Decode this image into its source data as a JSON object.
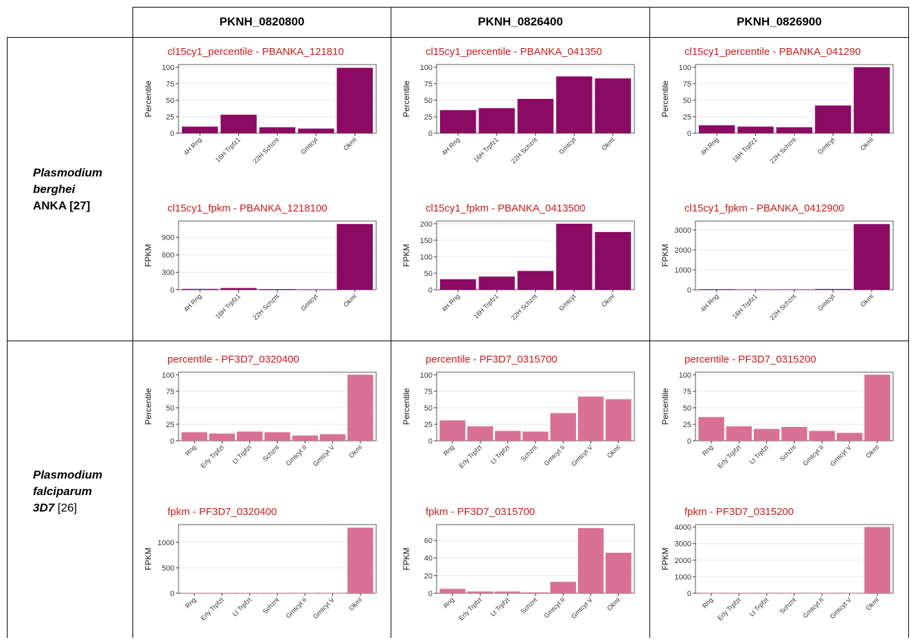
{
  "table": {
    "columns": [
      "PKNH_0820800",
      "PKNH_0826400",
      "PKNH_0826900"
    ],
    "rows": [
      {
        "label_italic": [
          "Plasmodium",
          "berghei"
        ],
        "label_name": "ANKA [27]"
      },
      {
        "label_italic": [
          "Plasmodium",
          "falciparum",
          "3D7"
        ],
        "label_name": "[26]"
      }
    ]
  },
  "colors": {
    "berghei": "#8b0a63",
    "falciparum": "#d97095",
    "title": "#cc1a1a"
  },
  "chart_data": [
    {
      "type": "bar",
      "title": "cl15cy1_percentile - PBANKA_121810",
      "ylabel": "Percentile",
      "categories": [
        "4H Rng",
        "16H Trpfz1",
        "22H Schznt",
        "Gmtcyt",
        "Okml"
      ],
      "values": [
        10,
        28,
        9,
        7,
        99
      ],
      "ylim": [
        0,
        104
      ],
      "yticks": [
        0,
        25,
        50,
        75,
        100
      ],
      "color": "berghei"
    },
    {
      "type": "bar",
      "title": "cl15cy1_percentile - PBANKA_041350",
      "ylabel": "Percentile",
      "categories": [
        "4H Rng",
        "16H Trpfz1",
        "22H Schznt",
        "Gmtcyt",
        "Okml"
      ],
      "values": [
        35,
        38,
        52,
        86,
        83
      ],
      "ylim": [
        0,
        104
      ],
      "yticks": [
        0,
        25,
        50,
        75,
        100
      ],
      "color": "berghei"
    },
    {
      "type": "bar",
      "title": "cl15cy1_percentile - PBANKA_041290",
      "ylabel": "Percentile",
      "categories": [
        "4H Rng",
        "16H Trpfz1",
        "22H Schznt",
        "Gmtcyt",
        "Okml"
      ],
      "values": [
        12,
        10,
        9,
        42,
        100
      ],
      "ylim": [
        0,
        104
      ],
      "yticks": [
        0,
        25,
        50,
        75,
        100
      ],
      "color": "berghei"
    },
    {
      "type": "bar",
      "title": "cl15cy1_fpkm - PBANKA_1218100",
      "ylabel": "FPKM",
      "categories": [
        "4H Rng",
        "16H Trpfz1",
        "22H Schznt",
        "Gmtcyt",
        "Okml"
      ],
      "values": [
        15,
        30,
        12,
        8,
        1130
      ],
      "ylim": [
        0,
        1180
      ],
      "yticks": [
        0,
        300,
        600,
        900
      ],
      "color": "berghei"
    },
    {
      "type": "bar",
      "title": "cl15cy1_fpkm - PBANKA_0413500",
      "ylabel": "FPKM",
      "categories": [
        "4H Rng",
        "16H Trpfz1",
        "22H Schznt",
        "Gmtcyt",
        "Okml"
      ],
      "values": [
        32,
        40,
        57,
        200,
        175
      ],
      "ylim": [
        0,
        208
      ],
      "yticks": [
        0,
        50,
        100,
        150,
        200
      ],
      "color": "berghei"
    },
    {
      "type": "bar",
      "title": "cl15cy1_fpkm - PBANKA_0412900",
      "ylabel": "FPKM",
      "categories": [
        "4H Rng",
        "16H Trpfz1",
        "22H Schznt",
        "Gmtcyt",
        "Okml"
      ],
      "values": [
        30,
        20,
        20,
        40,
        3300
      ],
      "ylim": [
        0,
        3450
      ],
      "yticks": [
        0,
        1000,
        2000,
        3000
      ],
      "color": "berghei"
    },
    {
      "type": "bar",
      "title": "percentile - PF3D7_0320400",
      "ylabel": "Percentile",
      "categories": [
        "Rng",
        "Erly Trpfzt",
        "Lt Trpfzt",
        "Schznt",
        "Gmtcyt II",
        "Gmtcyt V",
        "Okml"
      ],
      "values": [
        13,
        11,
        14,
        13,
        8,
        10,
        100
      ],
      "ylim": [
        0,
        104
      ],
      "yticks": [
        0,
        25,
        50,
        75,
        100
      ],
      "color": "falciparum"
    },
    {
      "type": "bar",
      "title": "percentile - PF3D7_0315700",
      "ylabel": "Percentile",
      "categories": [
        "Rng",
        "Erly Trpfzt",
        "Lt Trpfzt",
        "Schznt",
        "Gmtcyt II",
        "Gmtcyt V",
        "Okml"
      ],
      "values": [
        31,
        22,
        15,
        14,
        42,
        67,
        63
      ],
      "ylim": [
        0,
        104
      ],
      "yticks": [
        0,
        25,
        50,
        75,
        100
      ],
      "color": "falciparum"
    },
    {
      "type": "bar",
      "title": "percentile - PF3D7_0315200",
      "ylabel": "Percentile",
      "categories": [
        "Rng",
        "Erly Trpfzt",
        "Lt Trpfzt",
        "Schznt",
        "Gmtcyt II",
        "Gmtcyt V",
        "Okml"
      ],
      "values": [
        36,
        22,
        18,
        21,
        15,
        12,
        100
      ],
      "ylim": [
        0,
        104
      ],
      "yticks": [
        0,
        25,
        50,
        75,
        100
      ],
      "color": "falciparum"
    },
    {
      "type": "bar",
      "title": "fpkm - PF3D7_0320400",
      "ylabel": "FPKM",
      "categories": [
        "Rng",
        "Erly Trpfzt",
        "Lt Trpfzt",
        "Schznt",
        "Gmtcyt II",
        "Gmtcyt V",
        "Okml"
      ],
      "values": [
        5,
        4,
        5,
        4,
        3,
        3,
        1290
      ],
      "ylim": [
        0,
        1350
      ],
      "yticks": [
        0,
        500,
        1000
      ],
      "color": "falciparum"
    },
    {
      "type": "bar",
      "title": "fpkm - PF3D7_0315700",
      "ylabel": "FPKM",
      "categories": [
        "Rng",
        "Erly Trpfzt",
        "Lt Trpfzt",
        "Schznt",
        "Gmtcyt II",
        "Gmtcyt V",
        "Okml"
      ],
      "values": [
        5,
        2,
        2,
        1,
        13,
        74,
        46
      ],
      "ylim": [
        0,
        78
      ],
      "yticks": [
        0,
        20,
        40,
        60
      ],
      "color": "falciparum"
    },
    {
      "type": "bar",
      "title": "fpkm - PF3D7_0315200",
      "ylabel": "FPKM",
      "categories": [
        "Rng",
        "Erly Trpfzt",
        "Lt Trpfzt",
        "Schznt",
        "Gmtcyt II",
        "Gmtcyt V",
        "Okml"
      ],
      "values": [
        10,
        8,
        6,
        5,
        5,
        4,
        4000
      ],
      "ylim": [
        0,
        4150
      ],
      "yticks": [
        0,
        1000,
        2000,
        3000,
        4000
      ],
      "color": "falciparum"
    }
  ]
}
